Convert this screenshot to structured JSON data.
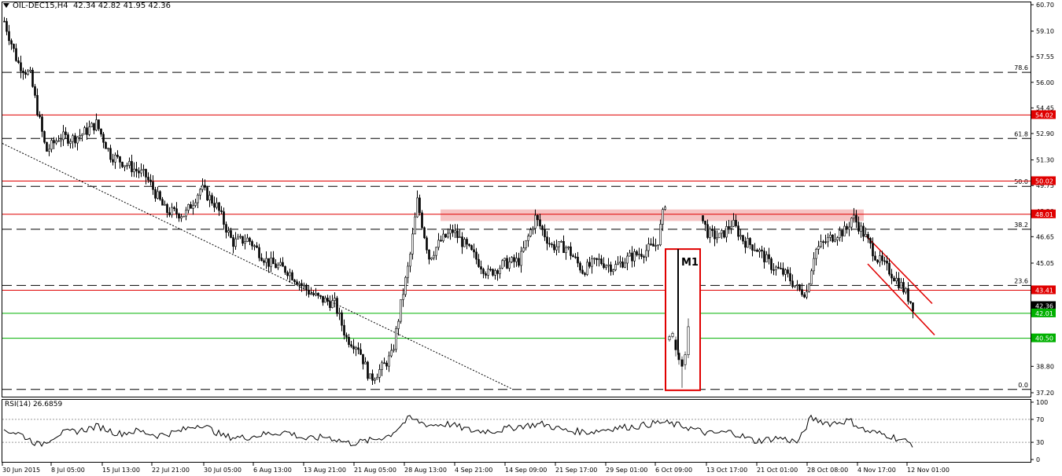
{
  "header": {
    "symbol": "OIL-DEC15,H4",
    "ohlc": "42.34 42.82 41.95 42.36"
  },
  "rsi": {
    "label": "RSI(14) 26.6859"
  },
  "colors": {
    "candle": "#000000",
    "support_resistance": "#e00000",
    "green_level": "#00b000",
    "fib_line": "#000000",
    "annotation_box": "#e00000",
    "highlight_zone": "#f4b8b8"
  },
  "chart_data": {
    "type": "candlestick",
    "ylim": [
      37.2,
      60.7
    ],
    "y_ticks": [
      "60.70",
      "59.10",
      "57.55",
      "56.00",
      "54.45",
      "52.90",
      "51.30",
      "49.75",
      "48.20",
      "46.65",
      "45.05",
      "43.50",
      "42.36",
      "40.40",
      "38.80",
      "37.20"
    ],
    "x_ticks": [
      "30 Jun 2015",
      "8 Jul 05:00",
      "15 Jul 13:00",
      "22 Jul 21:00",
      "30 Jul 05:00",
      "6 Aug 13:00",
      "13 Aug 21:00",
      "21 Aug 05:00",
      "28 Aug 13:00",
      "4 Sep 21:00",
      "14 Sep 09:00",
      "21 Sep 17:00",
      "29 Sep 01:00",
      "6 Oct 09:00",
      "13 Oct 17:00",
      "21 Oct 01:00",
      "28 Oct 08:00",
      "4 Nov 17:00",
      "12 Nov 01:00"
    ],
    "last_price": "42.36",
    "fib_levels": [
      {
        "label": "78.6",
        "value": 56.6
      },
      {
        "label": "61.8",
        "value": 52.6
      },
      {
        "label": "50.0",
        "value": 49.7
      },
      {
        "label": "38.2",
        "value": 47.1
      },
      {
        "label": "23.6",
        "value": 43.7
      },
      {
        "label": "0.0",
        "value": 37.4
      }
    ],
    "red_levels": [
      {
        "label": "54.02",
        "value": 54.02
      },
      {
        "label": "50.02",
        "value": 50.02
      },
      {
        "label": "48.01",
        "value": 48.01
      },
      {
        "label": "43.41",
        "value": 43.41
      }
    ],
    "green_levels": [
      {
        "label": "42.01",
        "value": 42.01
      },
      {
        "label": "40.50",
        "value": 40.5
      }
    ],
    "annotation": {
      "label": "M1"
    },
    "rsi": {
      "ylim": [
        0,
        100
      ],
      "ticks": [
        "100",
        "70",
        "30",
        "0"
      ],
      "value": 26.6859
    }
  }
}
